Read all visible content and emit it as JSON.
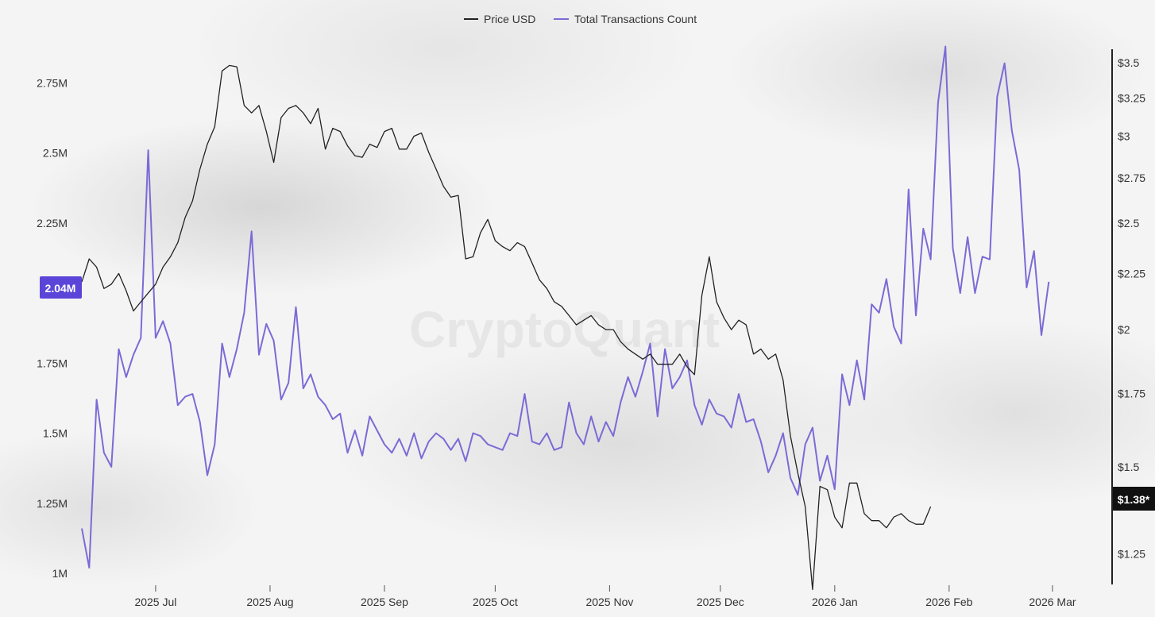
{
  "watermark": "CryptoQuant",
  "legend": [
    {
      "label": "Price USD",
      "color": "#222222"
    },
    {
      "label": "Total Transactions Count",
      "color": "#7c6ad6"
    }
  ],
  "left_badge": {
    "text": "2.04M",
    "color": "#5b45d9"
  },
  "right_badge": {
    "text": "$1.38*",
    "color": "#111111"
  },
  "chart_data": {
    "type": "line",
    "x_labels": [
      "2025 Jul",
      "2025 Aug",
      "2025 Sep",
      "2025 Oct",
      "2025 Nov",
      "2025 Dec",
      "2026 Jan",
      "2026 Feb",
      "2026 Mar"
    ],
    "x_range": [
      "2025-06-11",
      "2026-03-15"
    ],
    "left_axis": {
      "ticks": [
        "1M",
        "1.25M",
        "1.5M",
        "1.75M",
        "2M",
        "2.25M",
        "2.5M",
        "2.75M"
      ],
      "values": [
        1000000,
        1250000,
        1500000,
        1750000,
        2000000,
        2250000,
        2500000,
        2750000
      ],
      "range": [
        1000000,
        2870000
      ]
    },
    "right_axis": {
      "ticks": [
        "$1.25",
        "$1.5",
        "$1.75",
        "$2",
        "$2.25",
        "$2.5",
        "$2.75",
        "$3",
        "$3.25",
        "$3.5"
      ],
      "values": [
        1.25,
        1.5,
        1.75,
        2,
        2.25,
        2.5,
        2.75,
        3,
        3.25,
        3.5
      ],
      "scale": "log",
      "range": [
        1.2,
        3.6
      ]
    },
    "series": [
      {
        "name": "Price USD",
        "axis": "right",
        "color": "#222222",
        "x_start": "2025-06-11",
        "step_days": 2,
        "values": [
          2.21,
          2.32,
          2.28,
          2.18,
          2.2,
          2.25,
          2.17,
          2.08,
          2.12,
          2.16,
          2.2,
          2.28,
          2.33,
          2.4,
          2.53,
          2.62,
          2.8,
          2.95,
          3.06,
          3.44,
          3.48,
          3.47,
          3.2,
          3.15,
          3.2,
          3.03,
          2.84,
          3.12,
          3.18,
          3.2,
          3.15,
          3.08,
          3.18,
          2.92,
          3.05,
          3.03,
          2.94,
          2.88,
          2.87,
          2.95,
          2.93,
          3.03,
          3.05,
          2.92,
          2.92,
          3.0,
          3.02,
          2.9,
          2.8,
          2.7,
          2.64,
          2.65,
          2.32,
          2.33,
          2.45,
          2.52,
          2.41,
          2.38,
          2.36,
          2.4,
          2.38,
          2.3,
          2.22,
          2.18,
          2.12,
          2.1,
          2.06,
          2.02,
          2.04,
          2.06,
          2.02,
          2.0,
          2.0,
          1.95,
          1.92,
          1.9,
          1.88,
          1.9,
          1.86,
          1.86,
          1.86,
          1.9,
          1.85,
          1.82,
          2.15,
          2.33,
          2.12,
          2.05,
          2.0,
          2.04,
          2.02,
          1.9,
          1.92,
          1.88,
          1.9,
          1.8,
          1.6,
          1.48,
          1.38,
          1.16,
          1.44,
          1.43,
          1.35,
          1.32,
          1.45,
          1.45,
          1.36,
          1.34,
          1.34,
          1.32,
          1.35,
          1.36,
          1.34,
          1.33,
          1.33,
          1.38
        ]
      },
      {
        "name": "Total Transactions Count",
        "axis": "left",
        "color": "#7c6ad6",
        "x_start": "2025-06-11",
        "step_days": 2,
        "values": [
          1160000,
          1020000,
          1620000,
          1430000,
          1380000,
          1800000,
          1700000,
          1780000,
          1840000,
          2510000,
          1840000,
          1900000,
          1820000,
          1600000,
          1630000,
          1640000,
          1540000,
          1350000,
          1460000,
          1820000,
          1700000,
          1800000,
          1930000,
          2220000,
          1780000,
          1890000,
          1830000,
          1620000,
          1680000,
          1950000,
          1660000,
          1710000,
          1630000,
          1600000,
          1550000,
          1570000,
          1430000,
          1510000,
          1420000,
          1560000,
          1510000,
          1460000,
          1430000,
          1480000,
          1420000,
          1500000,
          1410000,
          1470000,
          1500000,
          1480000,
          1440000,
          1480000,
          1400000,
          1500000,
          1490000,
          1460000,
          1450000,
          1440000,
          1500000,
          1490000,
          1640000,
          1470000,
          1460000,
          1500000,
          1440000,
          1450000,
          1610000,
          1500000,
          1460000,
          1560000,
          1470000,
          1540000,
          1490000,
          1610000,
          1700000,
          1630000,
          1720000,
          1820000,
          1560000,
          1800000,
          1660000,
          1700000,
          1760000,
          1600000,
          1530000,
          1620000,
          1570000,
          1560000,
          1520000,
          1640000,
          1540000,
          1550000,
          1470000,
          1360000,
          1420000,
          1500000,
          1340000,
          1280000,
          1460000,
          1520000,
          1330000,
          1420000,
          1300000,
          1710000,
          1600000,
          1760000,
          1620000,
          1960000,
          1930000,
          2050000,
          1880000,
          1820000,
          2370000,
          1920000,
          2230000,
          2120000,
          2680000,
          2880000,
          2160000,
          2000000,
          2200000,
          2000000,
          2130000,
          2120000,
          2700000,
          2820000,
          2580000,
          2440000,
          2020000,
          2150000,
          1850000,
          2040000
        ]
      }
    ],
    "current_values": {
      "Total Transactions Count": "2.04M",
      "Price USD": "$1.38*"
    },
    "grid": false,
    "legend_position": "top-center"
  }
}
